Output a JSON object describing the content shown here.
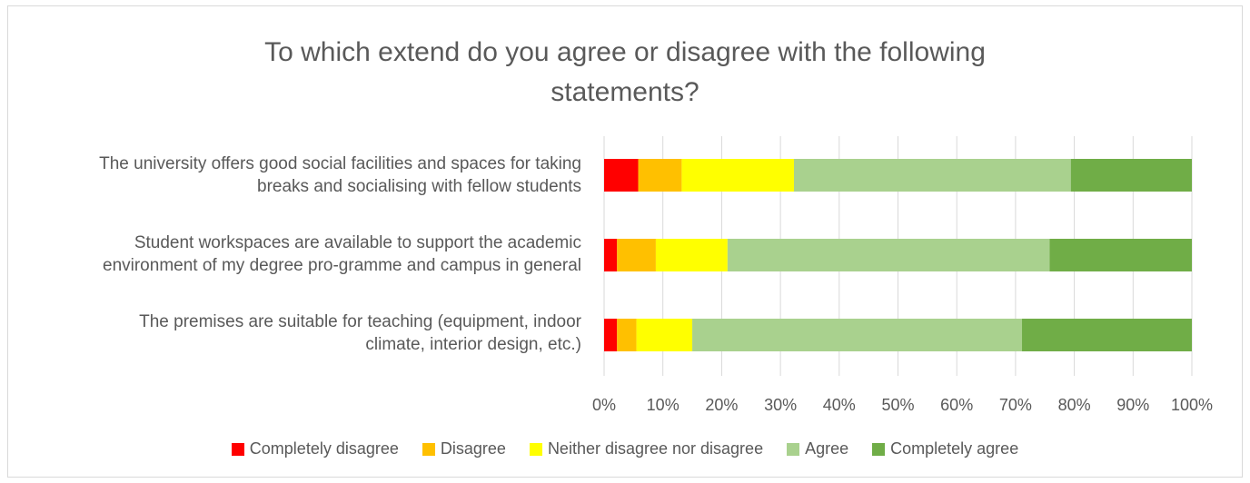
{
  "chart_data": {
    "type": "bar",
    "orientation": "horizontal",
    "stacked": true,
    "percent_stacked": true,
    "title": "To which extend do you agree or disagree with the following statements?",
    "title_lines": [
      "To which extend do you agree or disagree with the following",
      "statements?"
    ],
    "categories": [
      "The university offers good social facilities and spaces for taking breaks and socialising with fellow students",
      "Student workspaces are available to support the academic environment of my degree pro-gramme and campus in general",
      "The premises are suitable for teaching (equipment, indoor climate, interior design, etc.)"
    ],
    "category_lines": [
      [
        "The university offers good social facilities and spaces for taking",
        "breaks and socialising with fellow students"
      ],
      [
        "Student workspaces are available to support the academic",
        "environment of my degree pro-gramme and campus in general"
      ],
      [
        "The premises are suitable for teaching (equipment, indoor",
        "climate, interior design, etc.)"
      ]
    ],
    "series": [
      {
        "name": "Completely disagree",
        "color": "#ff0000",
        "values": [
          5.8,
          2.2,
          2.2
        ]
      },
      {
        "name": "Disagree",
        "color": "#ffc000",
        "values": [
          7.4,
          6.6,
          3.3
        ]
      },
      {
        "name": "Neither disagree nor disagree",
        "color": "#ffff00",
        "values": [
          19.1,
          12.2,
          9.5
        ]
      },
      {
        "name": "Agree",
        "color": "#a9d18e",
        "values": [
          47.1,
          54.8,
          56.1
        ]
      },
      {
        "name": "Completely agree",
        "color": "#70ad47",
        "values": [
          20.6,
          24.2,
          28.9
        ]
      }
    ],
    "x_ticks": [
      "0%",
      "10%",
      "20%",
      "30%",
      "40%",
      "50%",
      "60%",
      "70%",
      "80%",
      "90%",
      "100%"
    ],
    "xlim": [
      0,
      100
    ],
    "grid": true,
    "legend_position": "bottom"
  }
}
